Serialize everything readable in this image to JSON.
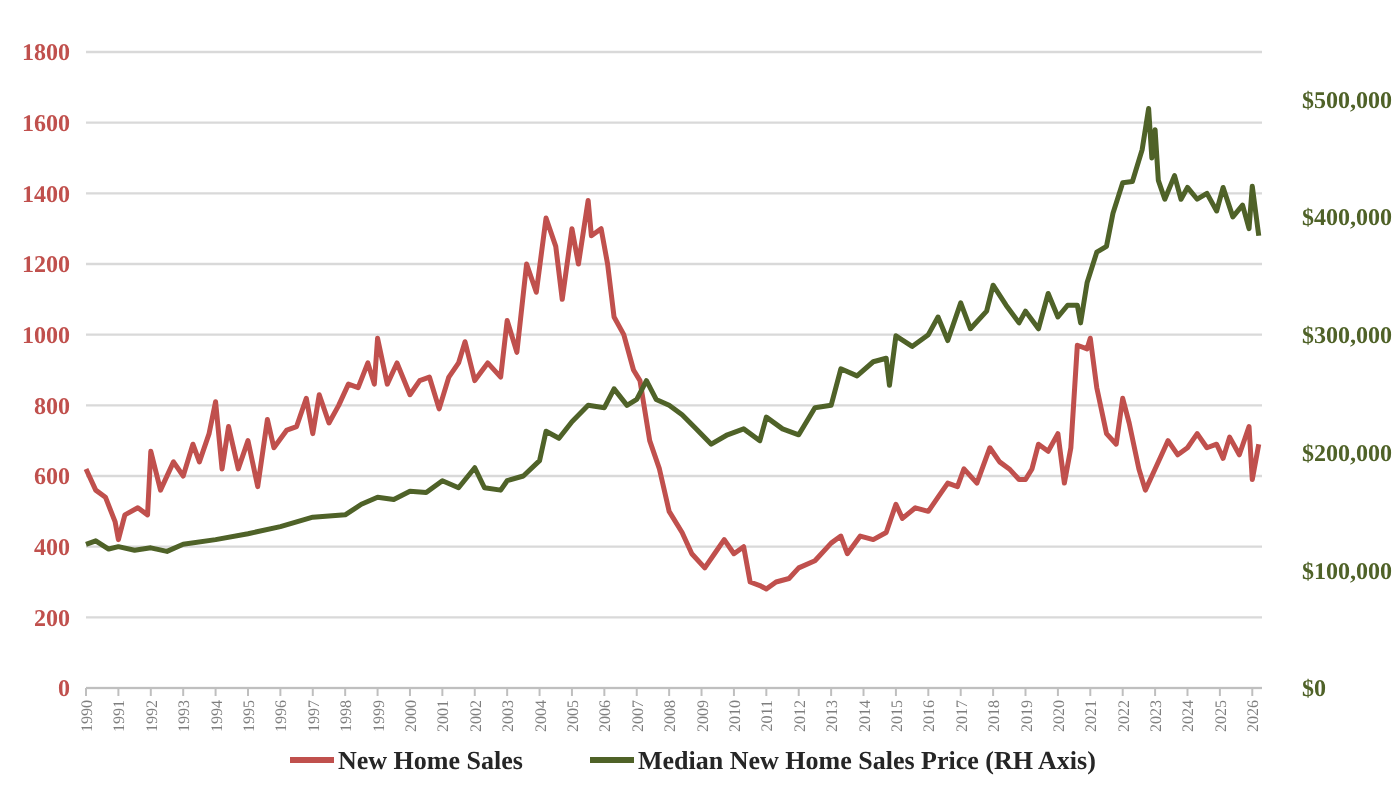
{
  "chart_data": {
    "type": "line",
    "x": [
      1990.0,
      1990.3,
      1990.6,
      1990.9,
      1991.0,
      1991.2,
      1991.6,
      1991.9,
      1992.0,
      1992.3,
      1992.7,
      1993.0,
      1993.3,
      1993.5,
      1993.8,
      1994.0,
      1994.2,
      1994.4,
      1994.7,
      1995.0,
      1995.3,
      1995.6,
      1995.8,
      1996.2,
      1996.5,
      1996.8,
      1997.0,
      1997.2,
      1997.5,
      1997.8,
      1998.1,
      1998.4,
      1998.7,
      1998.9,
      1999.0,
      1999.3,
      1999.6,
      2000.0,
      2000.3,
      2000.6,
      2000.9,
      2001.2,
      2001.5,
      2001.7,
      2002.0,
      2002.4,
      2002.8,
      2003.0,
      2003.3,
      2003.6,
      2003.9,
      2004.2,
      2004.5,
      2004.7,
      2005.0,
      2005.2,
      2005.5,
      2005.6,
      2005.9,
      2006.1,
      2006.3,
      2006.6,
      2006.9,
      2007.1,
      2007.4,
      2007.7,
      2008.0,
      2008.4,
      2008.7,
      2009.1,
      2009.4,
      2009.7,
      2010.0,
      2010.3,
      2010.5,
      2010.8,
      2011.0,
      2011.3,
      2011.7,
      2012.0,
      2012.5,
      2013.0,
      2013.3,
      2013.5,
      2013.9,
      2014.3,
      2014.7,
      2015.0,
      2015.2,
      2015.6,
      2016.0,
      2016.3,
      2016.6,
      2016.9,
      2017.1,
      2017.5,
      2017.9,
      2018.2,
      2018.5,
      2018.8,
      2019.0,
      2019.2,
      2019.4,
      2019.7,
      2020.0,
      2020.2,
      2020.4,
      2020.6,
      2020.9,
      2021.0,
      2021.2,
      2021.5,
      2021.8,
      2022.0,
      2022.2,
      2022.5,
      2022.7,
      2023.0,
      2023.3,
      2023.4,
      2023.7,
      2024.0,
      2024.3,
      2024.6,
      2024.9,
      2025.1,
      2025.3,
      2025.6,
      2025.9,
      2026.0,
      2026.2
    ],
    "xlim": [
      1990,
      2026.3
    ],
    "xticks": [
      1990,
      1991,
      1992,
      1993,
      1994,
      1995,
      1996,
      1997,
      1998,
      1999,
      2000,
      2001,
      2002,
      2003,
      2004,
      2005,
      2006,
      2007,
      2008,
      2009,
      2010,
      2011,
      2012,
      2013,
      2014,
      2015,
      2016,
      2017,
      2018,
      2019,
      2020,
      2021,
      2022,
      2023,
      2024,
      2025,
      2026
    ],
    "ylim": [
      0,
      1800
    ],
    "yticks": [
      0,
      200,
      400,
      600,
      800,
      1000,
      1200,
      1400,
      1600,
      1800
    ],
    "y2lim": [
      0,
      540000
    ],
    "y2ticks": [
      {
        "value": 0,
        "label": "$0"
      },
      {
        "value": 100000,
        "label": "$100,000"
      },
      {
        "value": 200000,
        "label": "$200,000"
      },
      {
        "value": 300000,
        "label": "$300,000"
      },
      {
        "value": 400000,
        "label": "$400,000"
      },
      {
        "value": 500000,
        "label": "$500,000"
      }
    ],
    "grid": "y",
    "legend": "bottom",
    "line_style": "solid",
    "marker": "none",
    "series": [
      {
        "name": "New Home Sales",
        "color": "#c0504d",
        "values": [
          620,
          560,
          540,
          470,
          420,
          490,
          510,
          490,
          670,
          560,
          640,
          600,
          690,
          640,
          720,
          810,
          620,
          740,
          620,
          700,
          570,
          760,
          680,
          730,
          740,
          820,
          720,
          830,
          750,
          800,
          860,
          850,
          920,
          860,
          990,
          860,
          920,
          830,
          870,
          880,
          790,
          880,
          920,
          980,
          870,
          920,
          880,
          1040,
          950,
          1200,
          1120,
          1330,
          1250,
          1100,
          1300,
          1200,
          1380,
          1280,
          1300,
          1200,
          1050,
          1000,
          900,
          870,
          700,
          620,
          500,
          440,
          380,
          340,
          380,
          420,
          380,
          400,
          300,
          290,
          280,
          300,
          310,
          340,
          360,
          410,
          430,
          380,
          430,
          420,
          440,
          520,
          480,
          510,
          500,
          540,
          580,
          570,
          620,
          580,
          680,
          640,
          620,
          590,
          590,
          620,
          690,
          670,
          720,
          580,
          680,
          970,
          960,
          990,
          850,
          720,
          690,
          820,
          750,
          620,
          560,
          620,
          680,
          700,
          660,
          680,
          720,
          680,
          690,
          650,
          710,
          660,
          740,
          590,
          690
        ]
      },
      {
        "name": "Median New Home Sales Price (RH Axis)",
        "color": "#4f6228",
        "axis": "y2",
        "x": [
          1990.0,
          1990.3,
          1990.7,
          1991.0,
          1991.5,
          1992.0,
          1992.5,
          1993.0,
          1994.0,
          1995.0,
          1996.0,
          1997.0,
          1998.0,
          1998.5,
          1999.0,
          1999.5,
          2000.0,
          2000.5,
          2001.0,
          2001.5,
          2002.0,
          2002.3,
          2002.8,
          2003.0,
          2003.5,
          2004.0,
          2004.2,
          2004.6,
          2005.0,
          2005.5,
          2006.0,
          2006.3,
          2006.7,
          2007.0,
          2007.3,
          2007.6,
          2008.0,
          2008.4,
          2008.8,
          2009.3,
          2009.8,
          2010.3,
          2010.8,
          2011.0,
          2011.5,
          2012.0,
          2012.5,
          2013.0,
          2013.3,
          2013.8,
          2014.3,
          2014.7,
          2014.8,
          2015.0,
          2015.5,
          2016.0,
          2016.3,
          2016.6,
          2017.0,
          2017.3,
          2017.8,
          2018.0,
          2018.4,
          2018.8,
          2019.0,
          2019.4,
          2019.7,
          2020.0,
          2020.3,
          2020.6,
          2020.7,
          2020.9,
          2021.2,
          2021.5,
          2021.7,
          2022.0,
          2022.3,
          2022.6,
          2022.8,
          2022.9,
          2023.0,
          2023.1,
          2023.3,
          2023.6,
          2023.8,
          2024.0,
          2024.3,
          2024.6,
          2024.9,
          2025.1,
          2025.4,
          2025.7,
          2025.9,
          2026.0,
          2026.2
        ],
        "values": [
          122000,
          125000,
          118000,
          120000,
          117000,
          119000,
          116000,
          122000,
          126000,
          131000,
          137000,
          145000,
          147000,
          156000,
          162000,
          160000,
          167000,
          166000,
          176000,
          170000,
          187000,
          170000,
          168000,
          176000,
          180000,
          193000,
          218000,
          212000,
          226000,
          240000,
          238000,
          254000,
          240000,
          245000,
          261000,
          245000,
          240000,
          232000,
          221000,
          207000,
          215000,
          220000,
          210000,
          230000,
          220000,
          215000,
          238000,
          240000,
          271000,
          265000,
          277000,
          280000,
          257000,
          299000,
          290000,
          300000,
          315000,
          295000,
          327000,
          305000,
          320000,
          342000,
          325000,
          310000,
          320000,
          305000,
          335000,
          315000,
          325000,
          325000,
          310000,
          344000,
          370000,
          375000,
          403000,
          429000,
          430000,
          457000,
          492000,
          450000,
          474000,
          431000,
          415000,
          435000,
          415000,
          425000,
          415000,
          420000,
          405000,
          425000,
          400000,
          410000,
          390000,
          426000,
          384000
        ]
      }
    ]
  }
}
